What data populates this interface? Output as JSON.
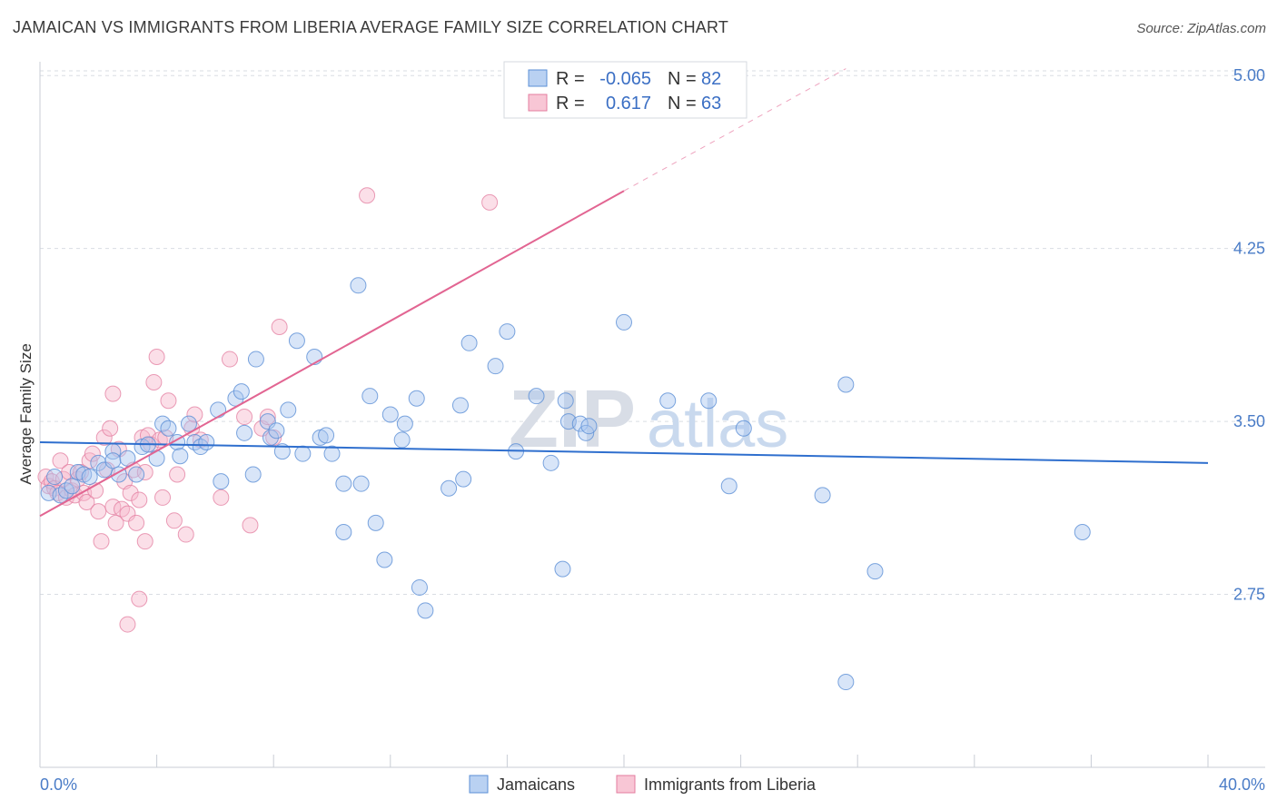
{
  "header": {
    "title": "JAMAICAN VS IMMIGRANTS FROM LIBERIA AVERAGE FAMILY SIZE CORRELATION CHART",
    "source": "Source: ZipAtlas.com"
  },
  "legend": {
    "rows": [
      {
        "r_label": "R =",
        "r_value": "-0.065",
        "n_label": "N =",
        "n_value": "82"
      },
      {
        "r_label": "R =",
        "r_value": "0.617",
        "n_label": "N =",
        "n_value": "63"
      }
    ]
  },
  "bottom_legend": [
    "Jamaicans",
    "Immigrants from Liberia"
  ],
  "watermark": {
    "zip": "ZIP",
    "atlas": "atlas"
  },
  "colors": {
    "blue_fill": "#a9c6ef",
    "blue_stroke": "#5b8fd6",
    "blue_line": "#2f6fce",
    "pink_fill": "#f6b9cc",
    "pink_stroke": "#e37c9f",
    "pink_line": "#e26592",
    "grid": "#d9dde3",
    "axis_text": "#4a7cc7"
  },
  "chart_data": {
    "type": "scatter",
    "title": "JAMAICAN VS IMMIGRANTS FROM LIBERIA AVERAGE FAMILY SIZE CORRELATION CHART",
    "xlabel": "",
    "ylabel": "Average Family Size",
    "xlim": [
      0,
      40
    ],
    "ylim": [
      2.0,
      5.06
    ],
    "x_tick_labels": [
      "0.0%",
      "40.0%"
    ],
    "y_ticks": [
      2.75,
      3.5,
      4.25,
      5.0
    ],
    "y_tick_labels": [
      "2.75",
      "3.50",
      "4.25",
      "5.00"
    ],
    "grid": "horizontal dashed",
    "legend_position": "top-center",
    "series": [
      {
        "name": "Jamaicans",
        "color": "#5b8fd6",
        "trend": {
          "x": [
            0,
            40
          ],
          "y": [
            3.41,
            3.32
          ]
        },
        "points": [
          [
            0.3,
            3.19
          ],
          [
            0.5,
            3.26
          ],
          [
            0.7,
            3.18
          ],
          [
            0.9,
            3.2
          ],
          [
            1.1,
            3.22
          ],
          [
            1.3,
            3.28
          ],
          [
            1.5,
            3.27
          ],
          [
            1.7,
            3.26
          ],
          [
            2.0,
            3.32
          ],
          [
            2.2,
            3.29
          ],
          [
            2.5,
            3.37
          ],
          [
            2.5,
            3.33
          ],
          [
            2.7,
            3.27
          ],
          [
            3.0,
            3.34
          ],
          [
            3.3,
            3.27
          ],
          [
            3.5,
            3.39
          ],
          [
            3.7,
            3.4
          ],
          [
            4.0,
            3.34
          ],
          [
            4.2,
            3.49
          ],
          [
            4.4,
            3.47
          ],
          [
            4.7,
            3.41
          ],
          [
            4.8,
            3.35
          ],
          [
            5.1,
            3.49
          ],
          [
            5.3,
            3.41
          ],
          [
            5.5,
            3.39
          ],
          [
            5.7,
            3.41
          ],
          [
            6.1,
            3.55
          ],
          [
            6.2,
            3.24
          ],
          [
            6.7,
            3.6
          ],
          [
            6.9,
            3.63
          ],
          [
            7.0,
            3.45
          ],
          [
            7.3,
            3.27
          ],
          [
            7.4,
            3.77
          ],
          [
            7.8,
            3.5
          ],
          [
            7.9,
            3.43
          ],
          [
            8.1,
            3.46
          ],
          [
            8.3,
            3.37
          ],
          [
            8.5,
            3.55
          ],
          [
            8.8,
            3.85
          ],
          [
            9.0,
            3.36
          ],
          [
            9.4,
            3.78
          ],
          [
            9.6,
            3.43
          ],
          [
            9.8,
            3.44
          ],
          [
            10.0,
            3.36
          ],
          [
            10.4,
            3.23
          ],
          [
            10.4,
            3.02
          ],
          [
            10.9,
            4.09
          ],
          [
            11.0,
            3.23
          ],
          [
            11.3,
            3.61
          ],
          [
            11.5,
            3.06
          ],
          [
            11.8,
            2.9
          ],
          [
            12.0,
            3.53
          ],
          [
            12.5,
            3.49
          ],
          [
            12.9,
            3.6
          ],
          [
            13.0,
            2.78
          ],
          [
            13.2,
            2.68
          ],
          [
            14.0,
            3.21
          ],
          [
            14.4,
            3.57
          ],
          [
            14.5,
            3.25
          ],
          [
            14.7,
            3.84
          ],
          [
            15.6,
            3.74
          ],
          [
            16.0,
            3.89
          ],
          [
            16.3,
            3.37
          ],
          [
            17.0,
            3.61
          ],
          [
            17.5,
            3.32
          ],
          [
            17.9,
            2.86
          ],
          [
            18.0,
            3.59
          ],
          [
            18.1,
            3.5
          ],
          [
            18.5,
            3.49
          ],
          [
            18.7,
            3.45
          ],
          [
            18.8,
            3.48
          ],
          [
            20.0,
            3.93
          ],
          [
            21.5,
            3.59
          ],
          [
            22.9,
            3.59
          ],
          [
            23.6,
            3.22
          ],
          [
            24.1,
            3.47
          ],
          [
            26.8,
            3.18
          ],
          [
            27.6,
            3.66
          ],
          [
            27.6,
            2.37
          ],
          [
            28.6,
            2.85
          ],
          [
            35.7,
            3.02
          ],
          [
            12.4,
            3.42
          ]
        ]
      },
      {
        "name": "Immigrants from Liberia",
        "color": "#e37c9f",
        "trend_solid": {
          "x": [
            0,
            20
          ],
          "y": [
            3.09,
            4.5
          ]
        },
        "trend_dashed": {
          "x": [
            20,
            27.6
          ],
          "y": [
            4.5,
            5.03
          ]
        },
        "points": [
          [
            0.2,
            3.26
          ],
          [
            0.3,
            3.22
          ],
          [
            0.4,
            3.24
          ],
          [
            0.5,
            3.21
          ],
          [
            0.6,
            3.19
          ],
          [
            0.7,
            3.33
          ],
          [
            0.8,
            3.25
          ],
          [
            0.9,
            3.17
          ],
          [
            1.0,
            3.28
          ],
          [
            1.1,
            3.2
          ],
          [
            1.2,
            3.18
          ],
          [
            1.3,
            3.25
          ],
          [
            1.4,
            3.28
          ],
          [
            1.5,
            3.19
          ],
          [
            1.6,
            3.15
          ],
          [
            1.7,
            3.33
          ],
          [
            1.8,
            3.36
          ],
          [
            1.9,
            3.2
          ],
          [
            2.0,
            3.11
          ],
          [
            2.1,
            2.98
          ],
          [
            2.2,
            3.43
          ],
          [
            2.3,
            3.29
          ],
          [
            2.4,
            3.47
          ],
          [
            2.5,
            3.13
          ],
          [
            2.6,
            3.06
          ],
          [
            2.7,
            3.38
          ],
          [
            2.8,
            3.12
          ],
          [
            2.9,
            3.24
          ],
          [
            3.0,
            3.1
          ],
          [
            3.1,
            3.19
          ],
          [
            3.2,
            3.29
          ],
          [
            3.3,
            3.06
          ],
          [
            3.4,
            3.16
          ],
          [
            3.5,
            3.43
          ],
          [
            3.6,
            3.28
          ],
          [
            3.7,
            3.44
          ],
          [
            3.8,
            3.4
          ],
          [
            3.9,
            3.67
          ],
          [
            4.0,
            3.78
          ],
          [
            4.1,
            3.42
          ],
          [
            4.2,
            3.17
          ],
          [
            4.3,
            3.43
          ],
          [
            4.4,
            3.59
          ],
          [
            4.6,
            3.07
          ],
          [
            4.7,
            3.27
          ],
          [
            5.0,
            3.01
          ],
          [
            5.2,
            3.47
          ],
          [
            5.3,
            3.53
          ],
          [
            5.5,
            3.42
          ],
          [
            6.2,
            3.17
          ],
          [
            6.5,
            3.77
          ],
          [
            7.0,
            3.52
          ],
          [
            7.2,
            3.05
          ],
          [
            7.6,
            3.47
          ],
          [
            7.8,
            3.52
          ],
          [
            8.0,
            3.43
          ],
          [
            8.2,
            3.91
          ],
          [
            11.2,
            4.48
          ],
          [
            15.4,
            4.45
          ],
          [
            2.5,
            3.62
          ],
          [
            3.0,
            2.62
          ],
          [
            3.4,
            2.73
          ],
          [
            3.6,
            2.98
          ]
        ]
      }
    ]
  }
}
